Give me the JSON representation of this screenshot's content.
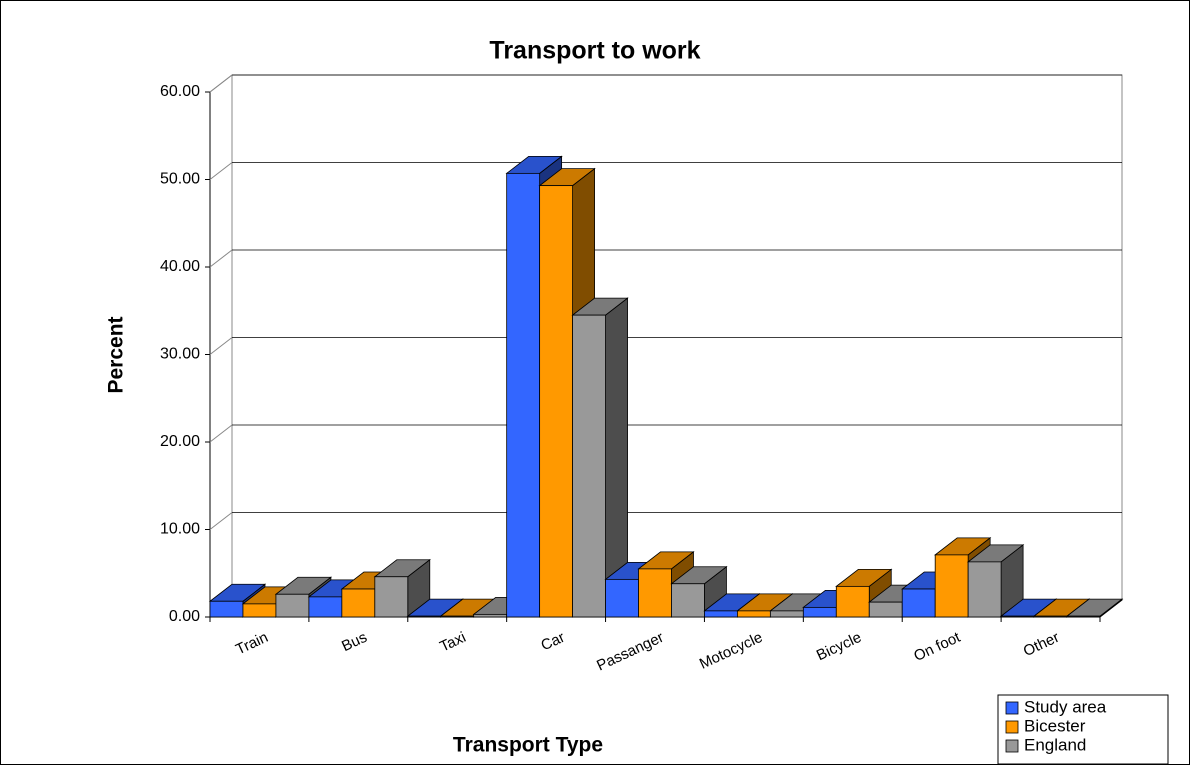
{
  "chart_data": {
    "type": "bar3d",
    "title": "Transport to work",
    "x_label": "Transport Type",
    "y_label": "Percent",
    "categories": [
      "Train",
      "Bus",
      "Taxi",
      "Car",
      "Passanger",
      "Motocycle",
      "Bicycle",
      "On foot",
      "Other"
    ],
    "series": [
      {
        "name": "Study area",
        "color": "#3366ff",
        "values": [
          1.8,
          2.3,
          0.1,
          50.7,
          4.3,
          0.7,
          1.1,
          3.2,
          0.1
        ]
      },
      {
        "name": "Bicester",
        "color": "#ff9900",
        "values": [
          1.5,
          3.2,
          0.1,
          49.3,
          5.5,
          0.7,
          3.5,
          7.1,
          0.1
        ]
      },
      {
        "name": "England",
        "color": "#999999",
        "values": [
          2.6,
          4.6,
          0.3,
          34.5,
          3.8,
          0.7,
          1.7,
          6.3,
          0.1
        ]
      }
    ],
    "ylim": [
      0,
      60
    ],
    "yticks": [
      {
        "value": 0,
        "label": "0.00"
      },
      {
        "value": 10,
        "label": "10.00"
      },
      {
        "value": 20,
        "label": "20.00"
      },
      {
        "value": 30,
        "label": "30.00"
      },
      {
        "value": 40,
        "label": "40.00"
      },
      {
        "value": 50,
        "label": "50.00"
      },
      {
        "value": 60,
        "label": "60.00"
      }
    ],
    "grid": true,
    "legend": "bottom-right"
  }
}
